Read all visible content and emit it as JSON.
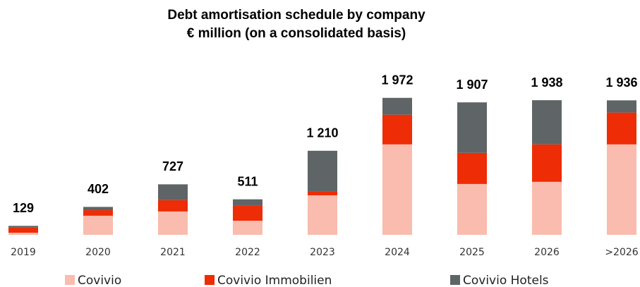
{
  "chart_data": {
    "type": "stacked-bar",
    "title": "Debt amortisation schedule by company",
    "subtitle": "€ million (on a consolidated basis)",
    "categories": [
      "2019",
      "2020",
      "2021",
      "2022",
      "2023",
      "2024",
      "2025",
      "2026",
      ">2026"
    ],
    "series": [
      {
        "name": "Covivio",
        "color": "#f9bcae",
        "values": [
          30,
          275,
          336,
          203,
          569,
          1302,
          732,
          763,
          1302
        ]
      },
      {
        "name": "Covivio Immobilien",
        "color": "#ee2c05",
        "values": [
          80,
          80,
          163,
          214,
          51,
          427,
          448,
          539,
          458
        ]
      },
      {
        "name": "Covivio Hotels",
        "color": "#5f6566",
        "values": [
          19,
          47,
          228,
          94,
          590,
          243,
          727,
          636,
          176
        ]
      }
    ],
    "totals": [
      129,
      402,
      727,
      511,
      1210,
      1972,
      1907,
      1938,
      1936
    ],
    "total_labels": [
      "129",
      "402",
      "727",
      "511",
      "1 210",
      "1 972",
      "1 907",
      "1 938",
      "1 936"
    ],
    "ylim": [
      0,
      2000
    ]
  }
}
